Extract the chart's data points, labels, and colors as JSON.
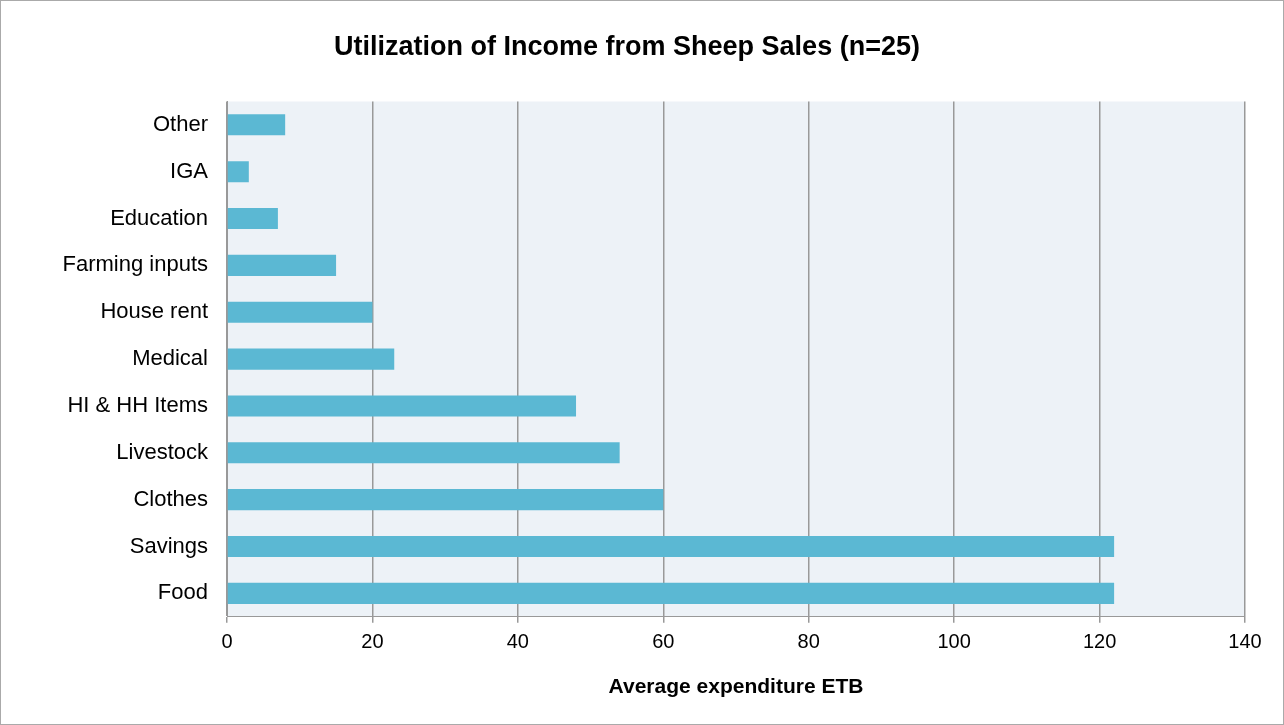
{
  "chart_data": {
    "type": "bar",
    "orientation": "horizontal",
    "title": "Utilization of Income from Sheep Sales (n=25)",
    "xlabel": "Average expenditure ETB",
    "categories": [
      "Other",
      "IGA",
      "Education",
      "Farming inputs",
      "House rent",
      "Medical",
      "HI & HH Items",
      "Livestock",
      "Clothes",
      "Savings",
      "Food"
    ],
    "values": [
      8,
      3,
      7,
      15,
      20,
      23,
      48,
      54,
      60,
      122,
      122
    ],
    "color": "#5bb8d3",
    "xlim": [
      0,
      140
    ],
    "xticks": [
      0,
      20,
      40,
      60,
      80,
      100,
      120,
      140
    ],
    "grid": "x",
    "legend": false
  }
}
